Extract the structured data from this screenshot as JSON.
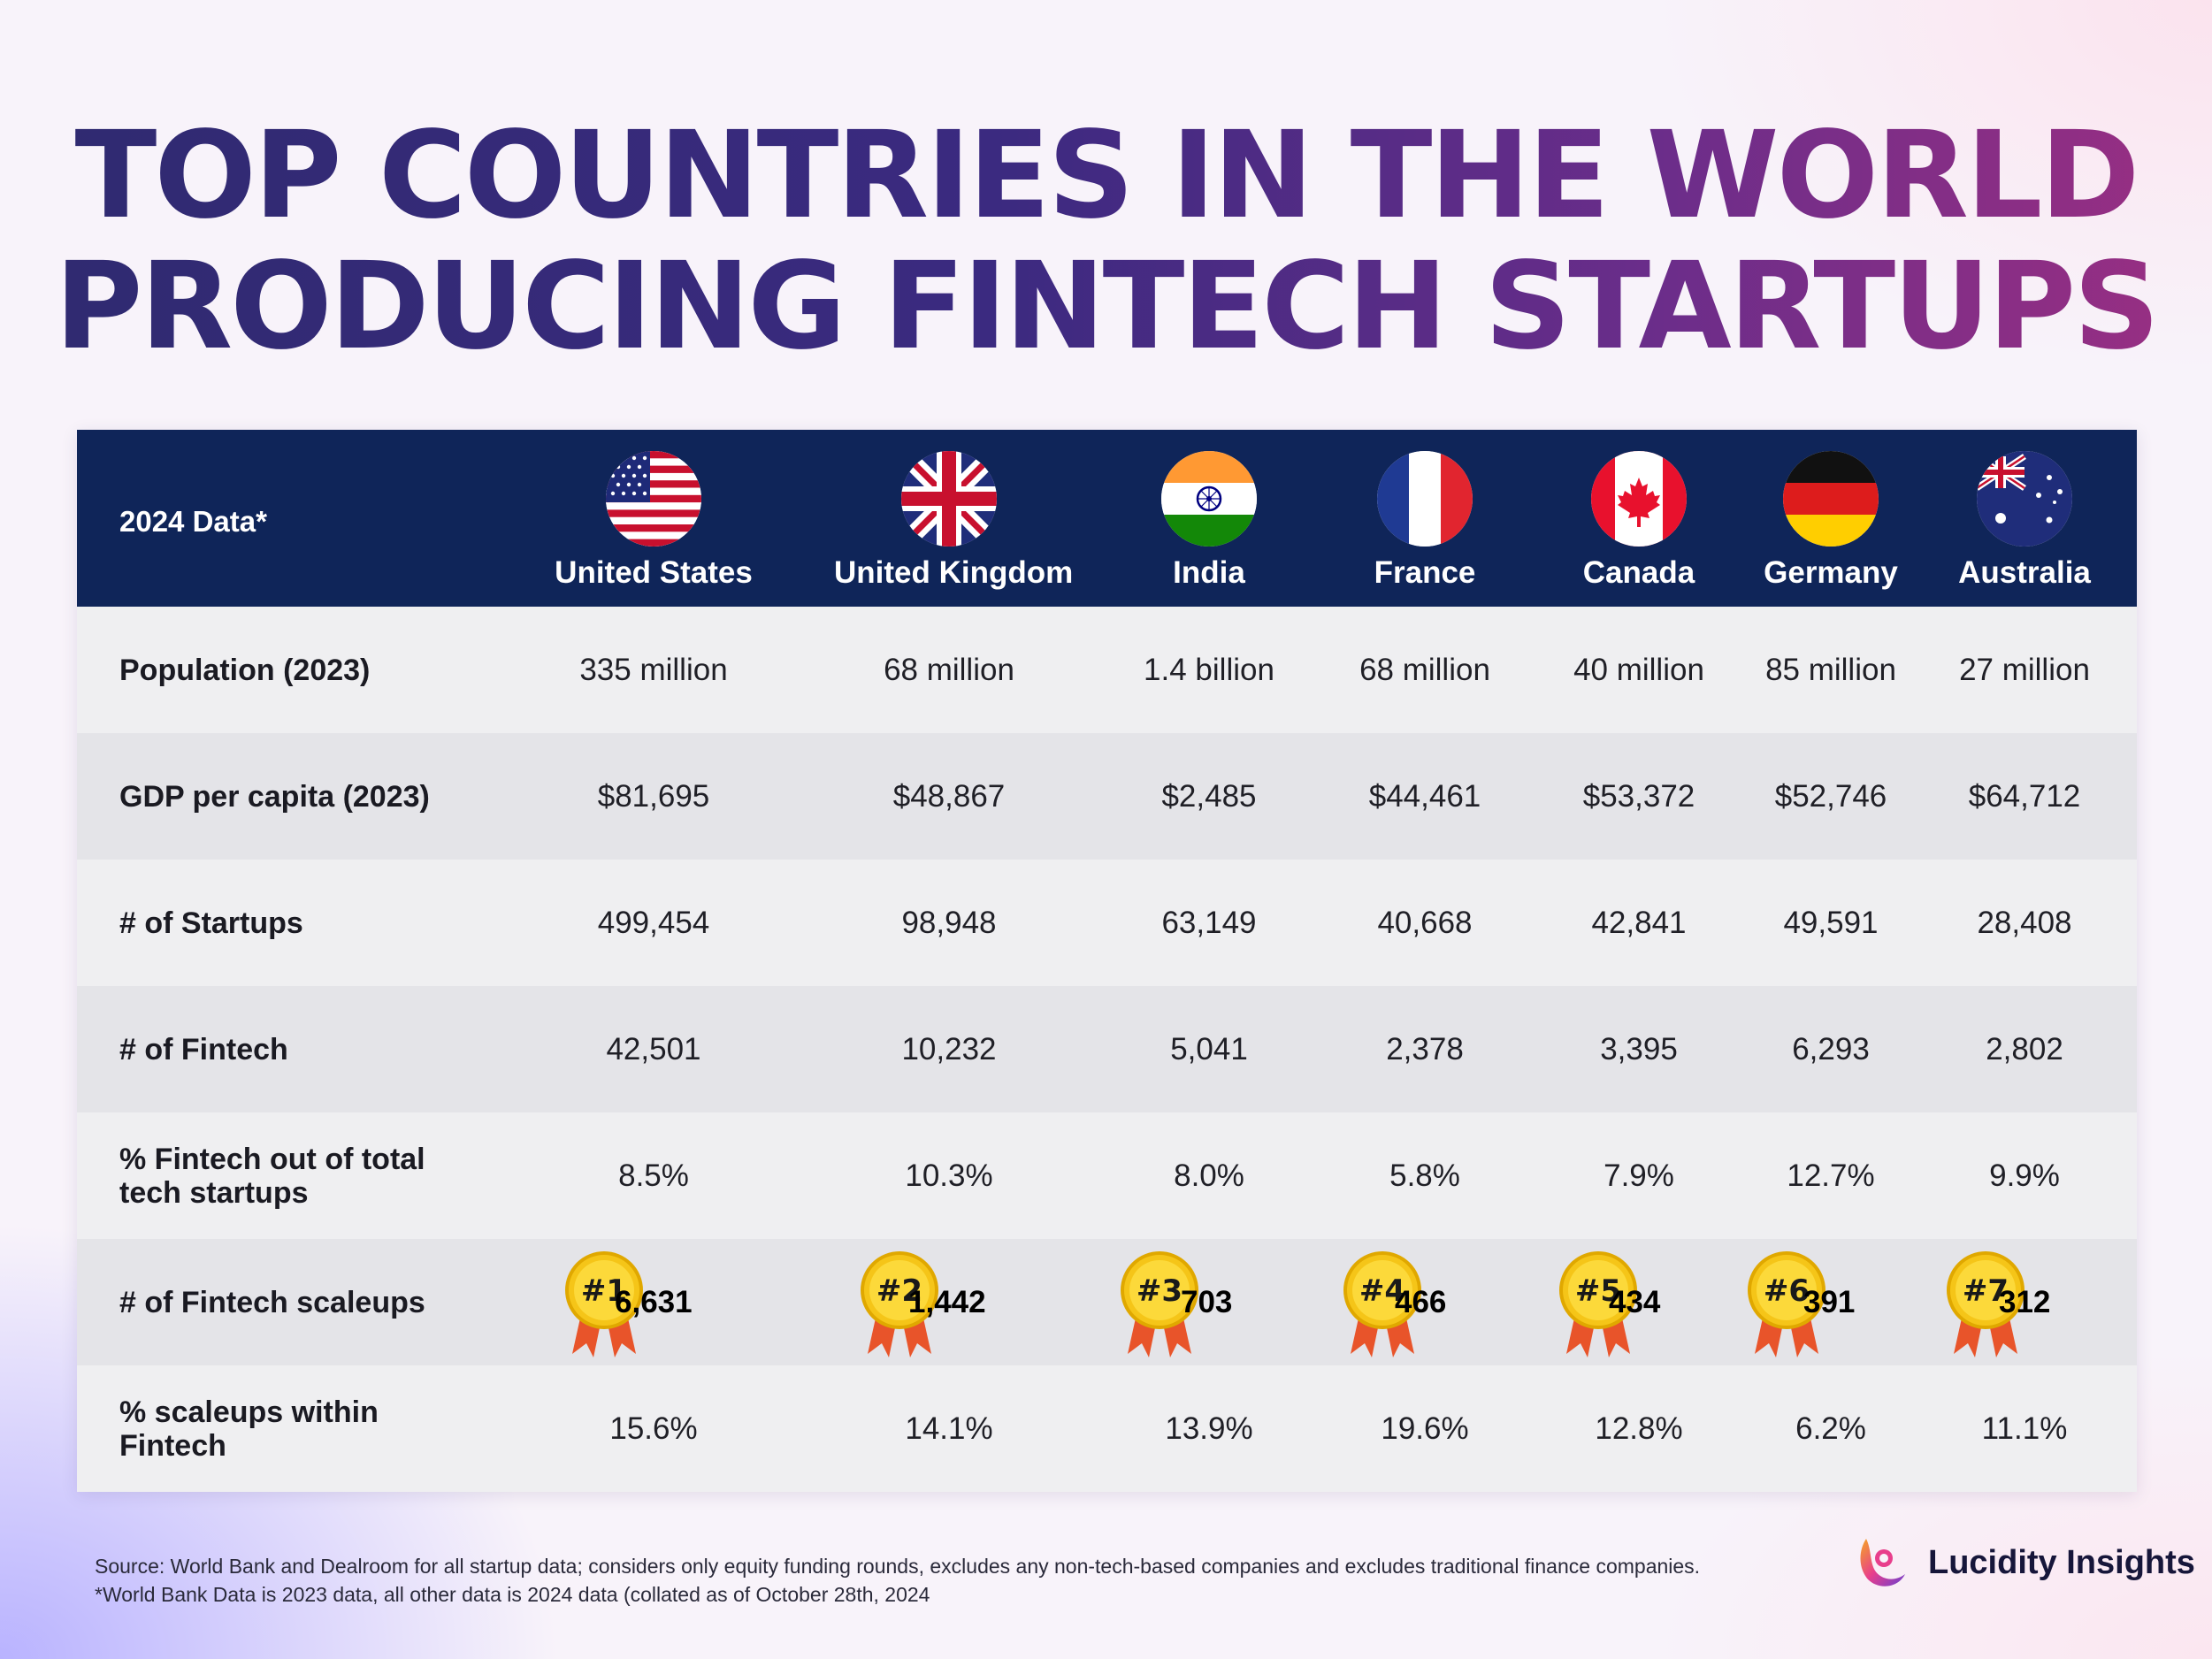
{
  "title": {
    "line1_a": "TOP COUNTRIES IN THE",
    "line1_b": "WORLD",
    "line2_a": "PRODUCING FINTECH",
    "line2_b": "STARTUPS"
  },
  "table": {
    "header_label": "2024 Data*",
    "countries": [
      "United States",
      "United Kingdom",
      "India",
      "France",
      "Canada",
      "Germany",
      "Australia"
    ],
    "rows": [
      {
        "label": "Population (2023)",
        "values": [
          "335 million",
          "68 million",
          "1.4 billion",
          "68 million",
          "40 million",
          "85 million",
          "27 million"
        ]
      },
      {
        "label": "GDP per capita (2023)",
        "values": [
          "$81,695",
          "$48,867",
          "$2,485",
          "$44,461",
          "$53,372",
          "$52,746",
          "$64,712"
        ]
      },
      {
        "label": "# of Startups",
        "values": [
          "499,454",
          "98,948",
          "63,149",
          "40,668",
          "42,841",
          "49,591",
          "28,408"
        ]
      },
      {
        "label": "# of Fintech",
        "values": [
          "42,501",
          "10,232",
          "5,041",
          "2,378",
          "3,395",
          "6,293",
          "2,802"
        ]
      },
      {
        "label": "% Fintech out of total tech startups",
        "values": [
          "8.5%",
          "10.3%",
          "8.0%",
          "5.8%",
          "7.9%",
          "12.7%",
          "9.9%"
        ]
      },
      {
        "label": "# of Fintech scaleups",
        "values": [
          "6,631",
          "1,442",
          "703",
          "466",
          "434",
          "391",
          "312"
        ],
        "ranks": [
          "#1",
          "#2",
          "#3",
          "#4",
          "#5",
          "#6",
          "#7"
        ]
      },
      {
        "label": "% scaleups within Fintech",
        "values": [
          "15.6%",
          "14.1%",
          "13.9%",
          "19.6%",
          "12.8%",
          "6.2%",
          "11.1%"
        ]
      }
    ]
  },
  "footer": {
    "source": "Source: World Bank and Dealroom  for all startup data; considers only equity funding rounds, excludes any non-tech-based companies and excludes traditional finance companies.",
    "note": "*World Bank Data is 2023 data, all other data is 2024 data (collated as of October 28th, 2024"
  },
  "brand": {
    "name": "Lucidity Insights",
    "icon": "lucidity-logo-icon"
  },
  "colors": {
    "header_bg": "#0f2559",
    "title_start": "#2f2a70",
    "title_end": "#9b2f82",
    "medal_gold": "#f5c518",
    "ribbon": "#e8542a"
  }
}
